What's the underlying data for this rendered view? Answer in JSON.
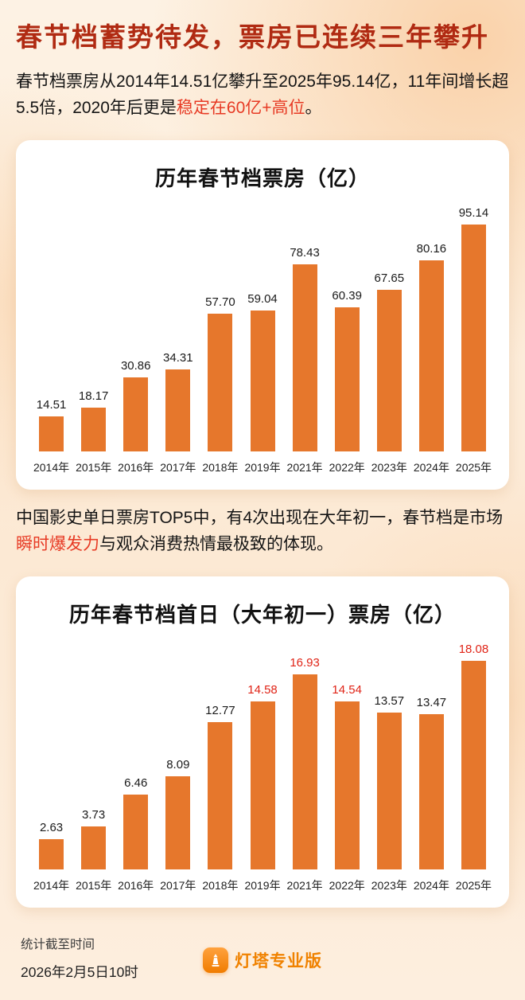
{
  "header": {
    "title": "春节档蓄势待发，票房已连续三年攀升"
  },
  "paragraphs": {
    "intro": {
      "pre": "春节档票房从2014年14.51亿攀升至2025年95.14亿，11年间增长超5.5倍，2020年后更是",
      "highlight": "稳定在60亿+高位",
      "post": "。"
    },
    "mid": {
      "pre": "中国影史单日票房TOP5中，有4次出现在大年初一，春节档是市场",
      "highlight": "瞬时爆发力",
      "post": "与观众消费热情最极致的体现。"
    }
  },
  "footer": {
    "stats_label": "统计截至时间",
    "stats_time": "2026年2月5日10时",
    "brand_name": "灯塔专业版"
  },
  "colors": {
    "bar": "#e6772c",
    "headline_red": "#b02a12",
    "highlight_red": "#e73a24",
    "red_value_label": "#e02417",
    "brand_orange": "#f08200"
  },
  "chart_data": [
    {
      "type": "bar",
      "title": "历年春节档票房（亿）",
      "categories": [
        "2014年",
        "2015年",
        "2016年",
        "2017年",
        "2018年",
        "2019年",
        "2021年",
        "2022年",
        "2023年",
        "2024年",
        "2025年"
      ],
      "values": [
        14.51,
        18.17,
        30.86,
        34.31,
        57.7,
        59.04,
        78.43,
        60.39,
        67.65,
        80.16,
        95.14
      ],
      "value_labels": [
        "14.51",
        "18.17",
        "30.86",
        "34.31",
        "57.70",
        "59.04",
        "78.43",
        "60.39",
        "67.65",
        "80.16",
        "95.14"
      ],
      "label_colors": [
        "black",
        "black",
        "black",
        "black",
        "black",
        "black",
        "black",
        "black",
        "black",
        "black",
        "black"
      ],
      "xlabel": "",
      "ylabel": "",
      "ylim": [
        0,
        100
      ],
      "grid": false,
      "legend": false
    },
    {
      "type": "bar",
      "title": "历年春节档首日（大年初一）票房（亿）",
      "categories": [
        "2014年",
        "2015年",
        "2016年",
        "2017年",
        "2018年",
        "2019年",
        "2021年",
        "2022年",
        "2023年",
        "2024年",
        "2025年"
      ],
      "values": [
        2.63,
        3.73,
        6.46,
        8.09,
        12.77,
        14.58,
        16.93,
        14.54,
        13.57,
        13.47,
        18.08
      ],
      "value_labels": [
        "2.63",
        "3.73",
        "6.46",
        "8.09",
        "12.77",
        "14.58",
        "16.93",
        "14.54",
        "13.57",
        "13.47",
        "18.08"
      ],
      "label_colors": [
        "black",
        "black",
        "black",
        "black",
        "black",
        "red",
        "red",
        "red",
        "black",
        "black",
        "red"
      ],
      "xlabel": "",
      "ylabel": "",
      "ylim": [
        0,
        20
      ],
      "grid": false,
      "legend": false
    }
  ]
}
